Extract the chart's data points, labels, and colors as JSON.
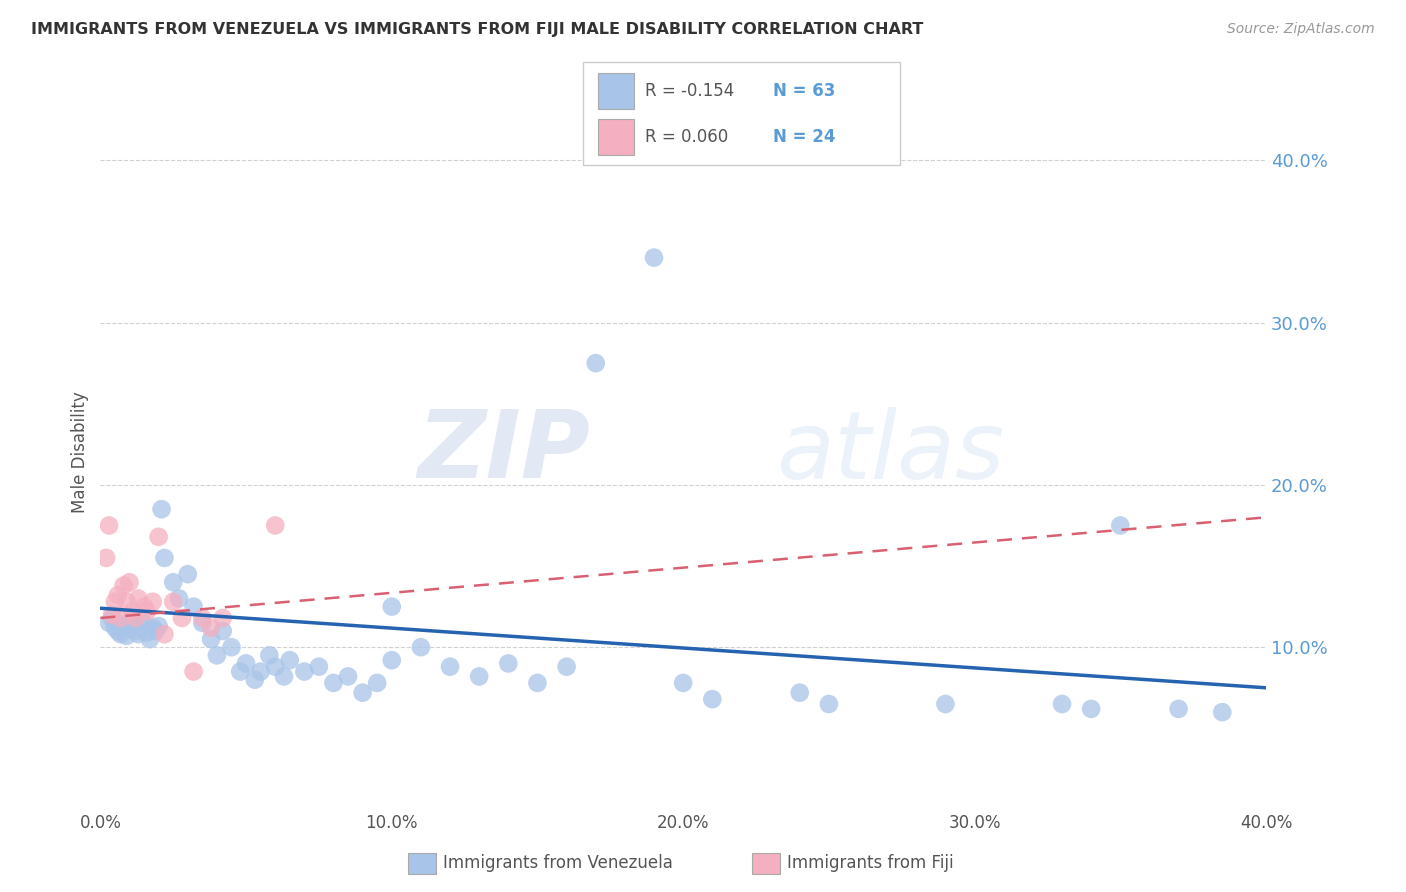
{
  "title": "IMMIGRANTS FROM VENEZUELA VS IMMIGRANTS FROM FIJI MALE DISABILITY CORRELATION CHART",
  "source": "Source: ZipAtlas.com",
  "ylabel": "Male Disability",
  "xlim": [
    0.0,
    0.4
  ],
  "ylim": [
    0.0,
    0.44
  ],
  "yticks": [
    0.1,
    0.2,
    0.3,
    0.4
  ],
  "xticks": [
    0.0,
    0.1,
    0.2,
    0.3,
    0.4
  ],
  "blue_color": "#a8c4e8",
  "pink_color": "#f4afc0",
  "blue_line_color": "#2563b0",
  "pink_line_color": "#d96070",
  "watermark_zip": "ZIP",
  "watermark_atlas": "atlas",
  "venezuela_x": [
    0.1,
    0.003,
    0.004,
    0.005,
    0.006,
    0.007,
    0.008,
    0.009,
    0.01,
    0.011,
    0.012,
    0.013,
    0.014,
    0.015,
    0.016,
    0.017,
    0.018,
    0.019,
    0.02,
    0.021,
    0.022,
    0.025,
    0.027,
    0.03,
    0.032,
    0.035,
    0.038,
    0.04,
    0.042,
    0.045,
    0.048,
    0.05,
    0.053,
    0.055,
    0.058,
    0.06,
    0.063,
    0.065,
    0.07,
    0.075,
    0.08,
    0.085,
    0.09,
    0.095,
    0.1,
    0.11,
    0.12,
    0.13,
    0.14,
    0.15,
    0.16,
    0.17,
    0.19,
    0.2,
    0.21,
    0.24,
    0.25,
    0.29,
    0.33,
    0.34,
    0.35,
    0.37,
    0.385
  ],
  "venezuela_y": [
    0.125,
    0.115,
    0.118,
    0.112,
    0.11,
    0.108,
    0.113,
    0.107,
    0.116,
    0.112,
    0.11,
    0.108,
    0.118,
    0.114,
    0.109,
    0.105,
    0.112,
    0.11,
    0.113,
    0.185,
    0.155,
    0.14,
    0.13,
    0.145,
    0.125,
    0.115,
    0.105,
    0.095,
    0.11,
    0.1,
    0.085,
    0.09,
    0.08,
    0.085,
    0.095,
    0.088,
    0.082,
    0.092,
    0.085,
    0.088,
    0.078,
    0.082,
    0.072,
    0.078,
    0.092,
    0.1,
    0.088,
    0.082,
    0.09,
    0.078,
    0.088,
    0.275,
    0.34,
    0.078,
    0.068,
    0.072,
    0.065,
    0.065,
    0.065,
    0.062,
    0.175,
    0.062,
    0.06
  ],
  "fiji_x": [
    0.002,
    0.003,
    0.004,
    0.005,
    0.006,
    0.007,
    0.008,
    0.009,
    0.01,
    0.011,
    0.012,
    0.013,
    0.015,
    0.016,
    0.018,
    0.02,
    0.022,
    0.025,
    0.028,
    0.032,
    0.035,
    0.038,
    0.042,
    0.06
  ],
  "fiji_y": [
    0.155,
    0.175,
    0.12,
    0.128,
    0.132,
    0.118,
    0.138,
    0.128,
    0.14,
    0.122,
    0.118,
    0.13,
    0.125,
    0.122,
    0.128,
    0.168,
    0.108,
    0.128,
    0.118,
    0.085,
    0.118,
    0.112,
    0.118,
    0.175
  ],
  "blue_trend_x0": 0.0,
  "blue_trend_y0": 0.124,
  "blue_trend_x1": 0.4,
  "blue_trend_y1": 0.075,
  "pink_trend_x0": 0.0,
  "pink_trend_y0": 0.118,
  "pink_trend_x1": 0.4,
  "pink_trend_y1": 0.18
}
